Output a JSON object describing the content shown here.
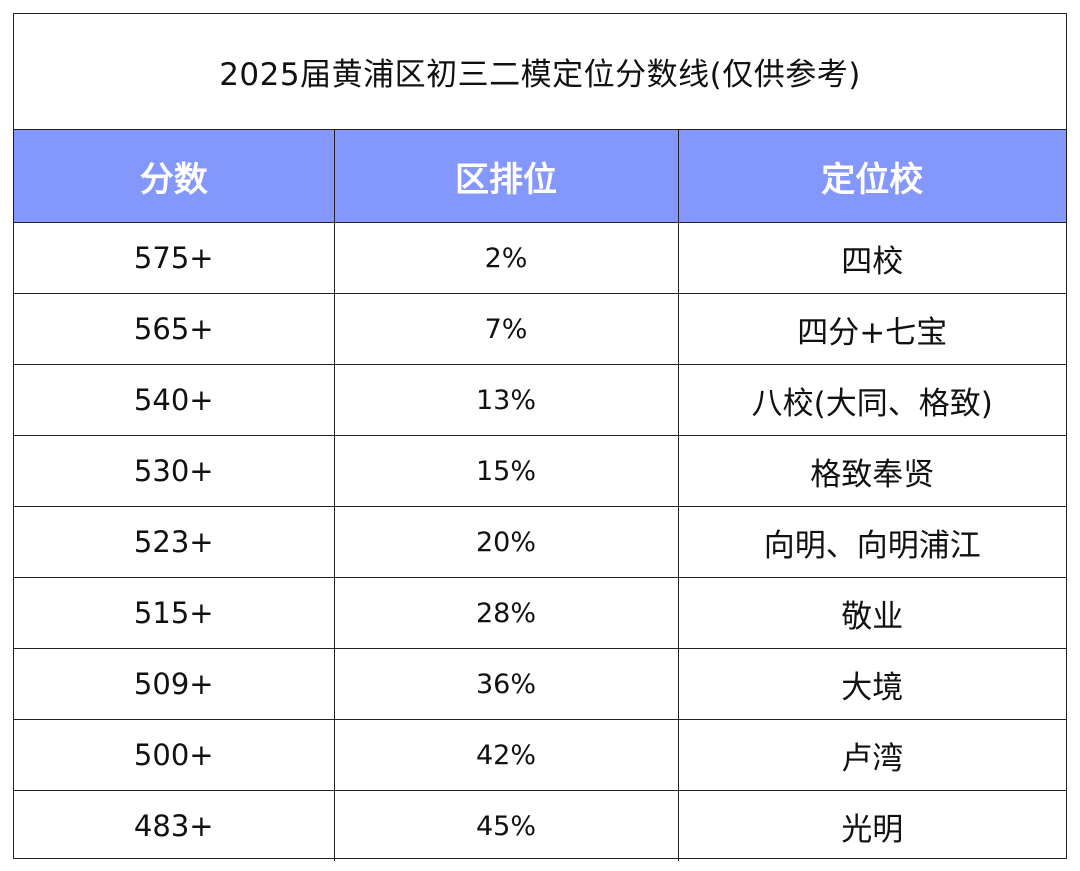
{
  "title": "2025届黄浦区初三二模定位分数线(仅供参考)",
  "header_color": "#8497fc",
  "columns": [
    "分数",
    "区排位",
    "定位校"
  ],
  "rows": [
    {
      "score": "575+",
      "rank": "2%",
      "school": "四校"
    },
    {
      "score": "565+",
      "rank": "7%",
      "school": "四分+七宝"
    },
    {
      "score": "540+",
      "rank": "13%",
      "school": "八校(大同、格致)"
    },
    {
      "score": "530+",
      "rank": "15%",
      "school": "格致奉贤"
    },
    {
      "score": "523+",
      "rank": "20%",
      "school": "向明、向明浦江"
    },
    {
      "score": "515+",
      "rank": "28%",
      "school": "敬业"
    },
    {
      "score": "509+",
      "rank": "36%",
      "school": "大境"
    },
    {
      "score": "500+",
      "rank": "42%",
      "school": "卢湾"
    },
    {
      "score": "483+",
      "rank": "45%",
      "school": "光明"
    }
  ]
}
